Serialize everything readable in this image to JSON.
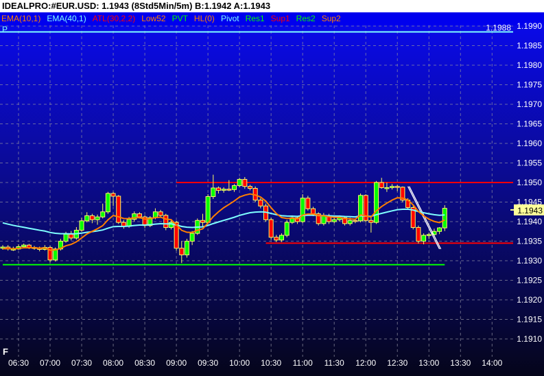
{
  "window": {
    "title": "IDEALPRO:#EUR.USD: 1.1943 (8Std5Min/5m)  B:1.1942 A:1.1943"
  },
  "legend": [
    {
      "label": "EMA(10,1)",
      "color": "#ff7f00"
    },
    {
      "label": "EMA(40,1)",
      "color": "#7fffff"
    },
    {
      "label": "ATL(30,2,2)",
      "color": "#ff0000"
    },
    {
      "label": "Low52",
      "color": "#ff7f00"
    },
    {
      "label": "PVT",
      "color": "#00ff00"
    },
    {
      "label": "HL(0)",
      "color": "#ff7f00"
    },
    {
      "label": "Pivot",
      "color": "#7fffff"
    },
    {
      "label": "Res1",
      "color": "#00ff00"
    },
    {
      "label": "Sup1",
      "color": "#ff0000"
    },
    {
      "label": "Res2",
      "color": "#00ff00"
    },
    {
      "label": "Sup2",
      "color": "#ff7f00"
    }
  ],
  "pivot_marker": "P",
  "bottom_marker": "F",
  "colors": {
    "up": "#00ff00",
    "down": "#ff0000",
    "wick": "#ffff66",
    "ema10": "#ff7f00",
    "ema40": "#7fffff",
    "pivot": "#7fffff",
    "last_tag": "#ffff99"
  },
  "chart_data": {
    "type": "candlestick",
    "interval": "5m",
    "ylim": [
      1.1905,
      1.1993
    ],
    "y_ticks": [
      "1.1990",
      "1.1985",
      "1.1980",
      "1.1975",
      "1.1970",
      "1.1965",
      "1.1960",
      "1.1955",
      "1.1950",
      "1.1945",
      "1.1940",
      "1.1935",
      "1.1930",
      "1.1925",
      "1.1920",
      "1.1915",
      "1.1910"
    ],
    "x_ticks": [
      "06:30",
      "07:00",
      "07:30",
      "08:00",
      "08:30",
      "09:00",
      "09:30",
      "10:00",
      "10:30",
      "11:00",
      "11:30",
      "12:00",
      "12:30",
      "13:00",
      "13:30",
      "14:00"
    ],
    "first_bar": "06:15",
    "last_price": "1.1943",
    "pivot": {
      "value": 1.19885,
      "label": "1.1988"
    },
    "levels": [
      {
        "value": 1.195,
        "from": "09:00",
        "color": "#ff0000"
      },
      {
        "value": 1.19345,
        "from": "10:25",
        "color": "#ff0000"
      },
      {
        "value": 1.1929,
        "from": "06:15",
        "to": "13:15",
        "color": "#00ff00"
      }
    ],
    "trendline": {
      "from": [
        "12:40",
        1.1949
      ],
      "to": [
        "13:10",
        1.1933
      ],
      "color": "#ffffff"
    },
    "ohlc": [
      [
        1.19332,
        1.1934,
        1.19328,
        1.19335
      ],
      [
        1.19335,
        1.1934,
        1.19326,
        1.1933
      ],
      [
        1.1933,
        1.19336,
        1.19325,
        1.1933
      ],
      [
        1.1933,
        1.19342,
        1.19328,
        1.19336
      ],
      [
        1.19336,
        1.19344,
        1.19332,
        1.1934
      ],
      [
        1.1934,
        1.19343,
        1.1933,
        1.19334
      ],
      [
        1.19334,
        1.19338,
        1.19328,
        1.19332
      ],
      [
        1.19332,
        1.19336,
        1.19324,
        1.19329
      ],
      [
        1.19329,
        1.1934,
        1.19326,
        1.19334
      ],
      [
        1.19334,
        1.19338,
        1.19296,
        1.19302
      ],
      [
        1.19302,
        1.19334,
        1.19298,
        1.1933
      ],
      [
        1.1933,
        1.19356,
        1.19326,
        1.1935
      ],
      [
        1.1935,
        1.19374,
        1.19346,
        1.19368
      ],
      [
        1.19368,
        1.19376,
        1.19352,
        1.19358
      ],
      [
        1.19358,
        1.19386,
        1.19354,
        1.19378
      ],
      [
        1.19378,
        1.1941,
        1.19374,
        1.19402
      ],
      [
        1.19402,
        1.19424,
        1.19398,
        1.19415
      ],
      [
        1.19415,
        1.1942,
        1.19396,
        1.19405
      ],
      [
        1.19405,
        1.19418,
        1.19392,
        1.19412
      ],
      [
        1.19412,
        1.19446,
        1.19408,
        1.19425
      ],
      [
        1.19425,
        1.19476,
        1.1942,
        1.19472
      ],
      [
        1.19472,
        1.19476,
        1.1944,
        1.19465
      ],
      [
        1.19465,
        1.19468,
        1.19394,
        1.19398
      ],
      [
        1.19398,
        1.19404,
        1.19382,
        1.19388
      ],
      [
        1.19388,
        1.19412,
        1.19384,
        1.19406
      ],
      [
        1.19406,
        1.19426,
        1.194,
        1.1942
      ],
      [
        1.1942,
        1.19424,
        1.19408,
        1.19412
      ],
      [
        1.19412,
        1.19416,
        1.19384,
        1.1939
      ],
      [
        1.1939,
        1.19414,
        1.19386,
        1.1941
      ],
      [
        1.1941,
        1.19434,
        1.19406,
        1.19425
      ],
      [
        1.19425,
        1.1943,
        1.1941,
        1.19416
      ],
      [
        1.19416,
        1.1942,
        1.19378,
        1.19385
      ],
      [
        1.19385,
        1.19404,
        1.1938,
        1.19398
      ],
      [
        1.19398,
        1.19402,
        1.19326,
        1.19332
      ],
      [
        1.19332,
        1.1935,
        1.19294,
        1.19315
      ],
      [
        1.19315,
        1.19356,
        1.19308,
        1.1935
      ],
      [
        1.1935,
        1.19376,
        1.1934,
        1.1937
      ],
      [
        1.1937,
        1.19408,
        1.19366,
        1.19403
      ],
      [
        1.19403,
        1.1942,
        1.19386,
        1.19398
      ],
      [
        1.19398,
        1.1947,
        1.19394,
        1.19464
      ],
      [
        1.19464,
        1.1952,
        1.19458,
        1.19486
      ],
      [
        1.19486,
        1.1949,
        1.19472,
        1.1948
      ],
      [
        1.1948,
        1.19488,
        1.19474,
        1.19483
      ],
      [
        1.19483,
        1.19506,
        1.19478,
        1.19482
      ],
      [
        1.19482,
        1.19496,
        1.19476,
        1.19492
      ],
      [
        1.19492,
        1.19512,
        1.19488,
        1.19508
      ],
      [
        1.19508,
        1.19514,
        1.19484,
        1.1949
      ],
      [
        1.1949,
        1.19494,
        1.1948,
        1.19485
      ],
      [
        1.19485,
        1.1949,
        1.1945,
        1.19455
      ],
      [
        1.19455,
        1.1946,
        1.19434,
        1.1944
      ],
      [
        1.1944,
        1.19446,
        1.194,
        1.19405
      ],
      [
        1.19405,
        1.1941,
        1.19354,
        1.1936
      ],
      [
        1.1936,
        1.19366,
        1.19348,
        1.19353
      ],
      [
        1.19353,
        1.1937,
        1.19348,
        1.19365
      ],
      [
        1.19365,
        1.19404,
        1.1936,
        1.19398
      ],
      [
        1.19398,
        1.19416,
        1.19394,
        1.1941
      ],
      [
        1.1941,
        1.19414,
        1.19394,
        1.194
      ],
      [
        1.194,
        1.1947,
        1.19396,
        1.1946
      ],
      [
        1.1946,
        1.19466,
        1.19428,
        1.19433
      ],
      [
        1.19433,
        1.19438,
        1.19414,
        1.1942
      ],
      [
        1.1942,
        1.19424,
        1.1939,
        1.19395
      ],
      [
        1.19395,
        1.19422,
        1.1939,
        1.19415
      ],
      [
        1.19415,
        1.1942,
        1.19394,
        1.194
      ],
      [
        1.194,
        1.19412,
        1.19396,
        1.19405
      ],
      [
        1.19405,
        1.19416,
        1.194,
        1.1941
      ],
      [
        1.1941,
        1.19414,
        1.1939,
        1.19395
      ],
      [
        1.19395,
        1.1941,
        1.1939,
        1.19403
      ],
      [
        1.19403,
        1.19408,
        1.19396,
        1.19402
      ],
      [
        1.19402,
        1.19472,
        1.19398,
        1.19467
      ],
      [
        1.19467,
        1.1947,
        1.19398,
        1.19403
      ],
      [
        1.19403,
        1.1941,
        1.19372,
        1.19398
      ],
      [
        1.19398,
        1.19504,
        1.19394,
        1.195
      ],
      [
        1.195,
        1.19512,
        1.19484,
        1.19487
      ],
      [
        1.19487,
        1.195,
        1.19476,
        1.19487
      ],
      [
        1.19487,
        1.19496,
        1.19482,
        1.1949
      ],
      [
        1.1949,
        1.19494,
        1.19478,
        1.19488
      ],
      [
        1.19488,
        1.1949,
        1.1945,
        1.19455
      ],
      [
        1.19455,
        1.1946,
        1.1943,
        1.19436
      ],
      [
        1.19436,
        1.1944,
        1.1938,
        1.19385
      ],
      [
        1.19385,
        1.1939,
        1.19344,
        1.1935
      ],
      [
        1.1935,
        1.1937,
        1.19342,
        1.19365
      ],
      [
        1.19365,
        1.19372,
        1.19356,
        1.19367
      ],
      [
        1.19367,
        1.19382,
        1.19362,
        1.19375
      ],
      [
        1.19375,
        1.19386,
        1.19368,
        1.19384
      ],
      [
        1.19384,
        1.19442,
        1.19376,
        1.19434
      ]
    ]
  }
}
